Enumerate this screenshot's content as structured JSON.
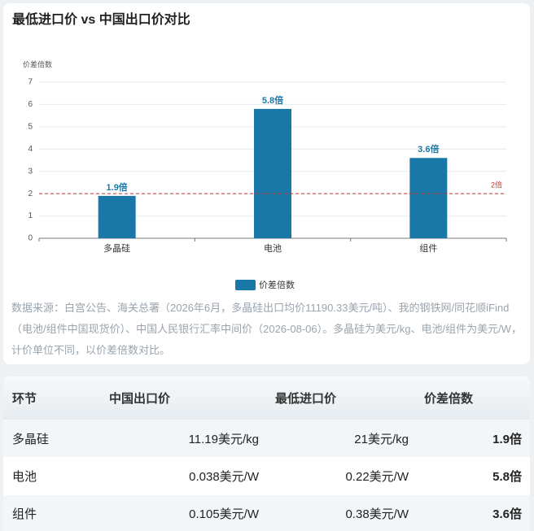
{
  "chart_data": {
    "type": "bar",
    "title": "最低进口价 vs 中国出口价对比",
    "y_label": "价差倍数",
    "categories": [
      "多晶硅",
      "电池",
      "组件"
    ],
    "series": [
      {
        "name": "价差倍数",
        "color": "#1a78a8",
        "values": [
          1.9,
          5.8,
          3.6
        ],
        "value_labels": [
          "1.9倍",
          "5.8倍",
          "3.6倍"
        ]
      }
    ],
    "ylim": [
      0,
      7
    ],
    "yticks": [
      0,
      1,
      2,
      3,
      4,
      5,
      6,
      7
    ],
    "grid": true,
    "reference_line": {
      "value": 2,
      "label": "2倍",
      "color": "#c0392b"
    },
    "legend": "bottom"
  },
  "note": "数据来源：白宫公告、海关总署（2026年6月，多晶硅出口均价11190.33美元/吨）、我的钢铁网/同花顺iFind（电池/组件中国现货价）、中国人民银行汇率中间价（2026-08-06）。多晶硅为美元/kg、电池/组件为美元/W，计价单位不同，以价差倍数对比。",
  "table": {
    "columns": [
      "环节",
      "中国出口价",
      "最低进口价",
      "价差倍数"
    ],
    "rows": [
      [
        "多晶硅",
        "11.19美元/kg",
        "21美元/kg",
        "1.9倍"
      ],
      [
        "电池",
        "0.038美元/W",
        "0.22美元/W",
        "5.8倍"
      ],
      [
        "组件",
        "0.105美元/W",
        "0.38美元/W",
        "3.6倍"
      ]
    ]
  }
}
